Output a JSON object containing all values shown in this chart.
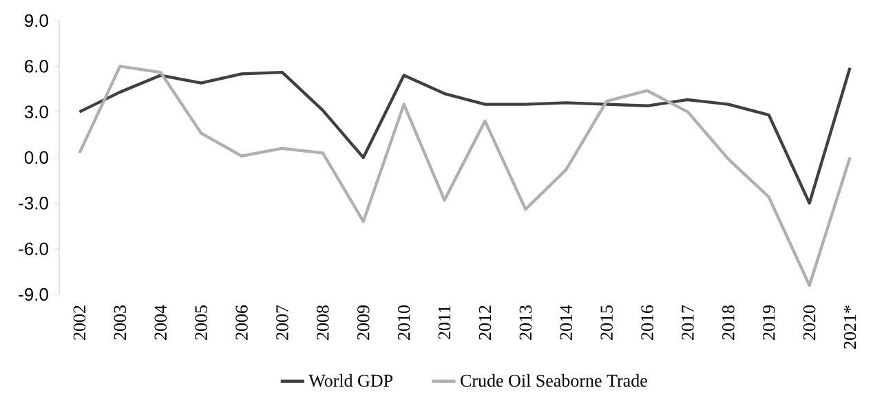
{
  "chart_data": {
    "type": "line",
    "categories": [
      "2002",
      "2003",
      "2004",
      "2005",
      "2006",
      "2007",
      "2008",
      "2009",
      "2010",
      "2011",
      "2012",
      "2013",
      "2014",
      "2015",
      "2016",
      "2017",
      "2018",
      "2019",
      "2020",
      "2021*"
    ],
    "series": [
      {
        "name": "World GDP",
        "color": "#404040",
        "values": [
          3.0,
          4.3,
          5.4,
          4.9,
          5.5,
          5.6,
          3.1,
          0.0,
          5.4,
          4.2,
          3.5,
          3.5,
          3.6,
          3.5,
          3.4,
          3.8,
          3.5,
          2.8,
          -3.0,
          5.9
        ]
      },
      {
        "name": "Crude Oil Seaborne Trade",
        "color": "#b0b0b0",
        "values": [
          0.3,
          6.0,
          5.6,
          1.6,
          0.1,
          0.6,
          0.3,
          -4.2,
          3.5,
          -2.8,
          2.4,
          -3.4,
          -0.8,
          3.7,
          4.4,
          3.0,
          -0.1,
          -2.6,
          -8.4,
          0.0
        ]
      }
    ],
    "ylim": [
      -9,
      9
    ],
    "yticks": [
      {
        "value": -9,
        "label": "-9.0"
      },
      {
        "value": -6,
        "label": "-6.0"
      },
      {
        "value": -3,
        "label": "-3.0"
      },
      {
        "value": 0,
        "label": "0.0"
      },
      {
        "value": 3,
        "label": "3.0"
      },
      {
        "value": 6,
        "label": "6.0"
      },
      {
        "value": 9,
        "label": "9.0"
      }
    ],
    "legend": "bottom",
    "grid": false,
    "marker": "none",
    "line_style": "solid"
  }
}
